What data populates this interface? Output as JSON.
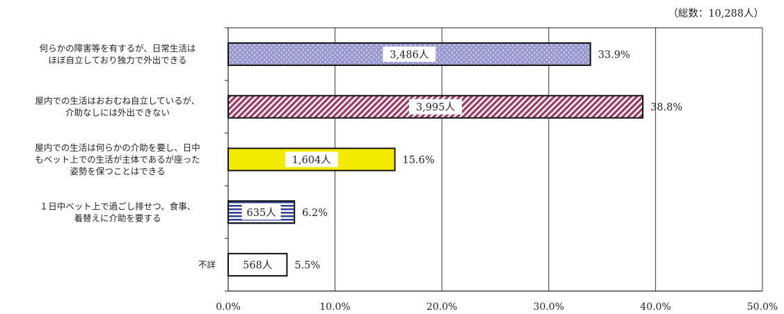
{
  "chart_data": {
    "type": "bar",
    "orientation": "horizontal",
    "total_note": "（総数：10,288人）",
    "categories": [
      [
        "何らかの障害等を有するが、日常生活は",
        "ほぼ自立しており独力で外出できる"
      ],
      [
        "屋内での生活はおおむね自立しているが、",
        "介助なしには外出できない"
      ],
      [
        "屋内での生活は何らかの介助を要し、日中",
        "もベット上での生活が主体であるが座った",
        "姿勢を保つことはできる"
      ],
      [
        "１日中ベット上で過ごし排せつ、食事、",
        "着替えに介助を要する"
      ],
      [
        "不詳"
      ]
    ],
    "values": [
      33.9,
      38.8,
      15.6,
      6.2,
      5.5
    ],
    "value_labels": [
      "33.9%",
      "38.8%",
      "15.6%",
      "6.2%",
      "5.5%"
    ],
    "counts": [
      "3,486人",
      "3,995人",
      "1,604人",
      "635人",
      "568人"
    ],
    "xlim": [
      0,
      50
    ],
    "x_ticks": [
      0,
      10,
      20,
      30,
      40,
      50
    ],
    "x_tick_labels": [
      "0.0%",
      "10.0%",
      "20.0%",
      "30.0%",
      "40.0%",
      "50.0%"
    ],
    "grid": "vertical",
    "bar_styles": [
      {
        "pattern": "dots",
        "fill": "#9a9ad2",
        "accent": "#ffffff"
      },
      {
        "pattern": "diagonal",
        "fill": "#ffffff",
        "accent": "#a23a68"
      },
      {
        "pattern": "solid",
        "fill": "#f4ea00"
      },
      {
        "pattern": "h-stripes",
        "fill": "#ffffff",
        "accent": "#2e3f8f"
      },
      {
        "pattern": "solid",
        "fill": "#ffffff"
      }
    ]
  }
}
